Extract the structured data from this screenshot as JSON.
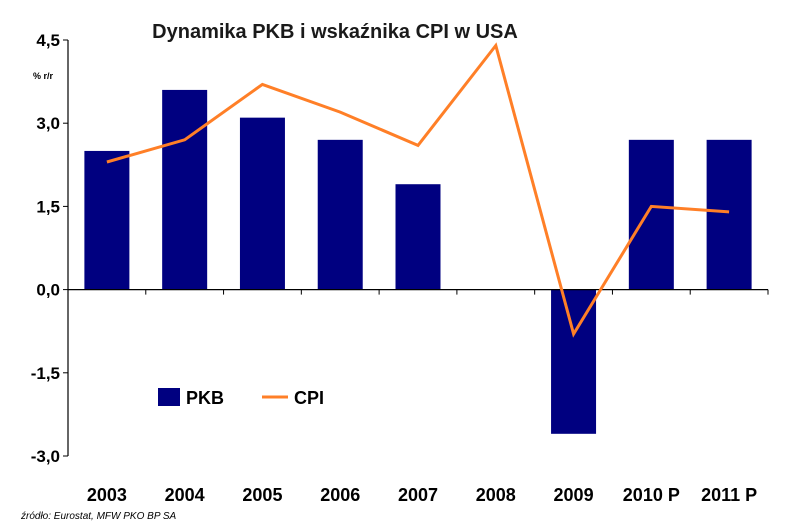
{
  "chart_data": {
    "type": "bar",
    "title": "Dynamika PKB i wskaźnika CPI w USA",
    "unit_label": "% r/r",
    "categories": [
      "2003",
      "2004",
      "2005",
      "2006",
      "2007",
      "2008",
      "2009",
      "2010 P",
      "2011 P"
    ],
    "series": [
      {
        "name": "PKB",
        "type": "bar",
        "color": "#000080",
        "values": [
          2.5,
          3.6,
          3.1,
          2.7,
          1.9,
          0.0,
          -2.6,
          2.7,
          2.7
        ]
      },
      {
        "name": "CPI",
        "type": "line",
        "color": "#ff7f27",
        "values": [
          2.3,
          2.7,
          3.7,
          3.2,
          2.6,
          4.4,
          -0.8,
          1.5,
          1.4
        ]
      }
    ],
    "yticks": [
      "4,5",
      "3,0",
      "1,5",
      "0,0",
      "-1,5",
      "-3,0"
    ],
    "ytick_values": [
      4.5,
      3.0,
      1.5,
      0.0,
      -1.5,
      -3.0
    ],
    "ylim": [
      -3.0,
      4.5
    ],
    "grid": false,
    "legend_position": "lower-left",
    "source": "źródło: Eurostat, MFW PKO BP SA"
  }
}
